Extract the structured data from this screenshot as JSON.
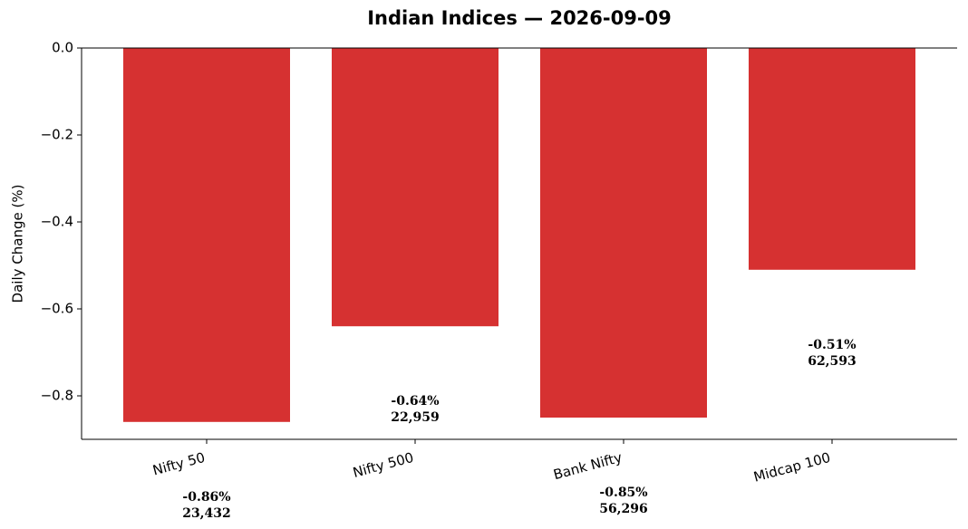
{
  "chart_data": {
    "type": "bar",
    "title": "Indian Indices — 2026-09-09",
    "y_label": "Daily Change (%)",
    "categories": [
      "Nifty 50",
      "Nifty 500",
      "Bank Nifty",
      "Midcap 100"
    ],
    "values": [
      -0.86,
      -0.64,
      -0.85,
      -0.51
    ],
    "value_labels": [
      "-0.86%",
      "-0.64%",
      "-0.85%",
      "-0.51%"
    ],
    "close_labels": [
      "23,432",
      "22,959",
      "56,296",
      "62,593"
    ],
    "color": "#d63131",
    "ylim": [
      -0.9,
      0
    ],
    "yticks": [
      {
        "value": 0,
        "label": "0.0"
      },
      {
        "value": -0.2,
        "label": "−0.2"
      },
      {
        "value": -0.4,
        "label": "−0.4"
      },
      {
        "value": -0.6,
        "label": "−0.6"
      },
      {
        "value": -0.8,
        "label": "−0.8"
      }
    ]
  }
}
